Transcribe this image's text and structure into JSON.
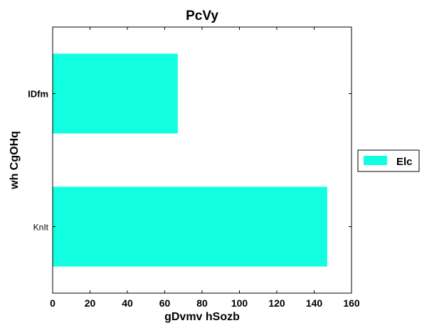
{
  "chart_data": {
    "type": "bar",
    "orientation": "horizontal",
    "title": "PcVy",
    "xlabel": "gDvmv hSozb",
    "ylabel": "wh CgOHq",
    "categories": [
      "KnIt",
      "IDfm"
    ],
    "series": [
      {
        "name": "Elc",
        "values": [
          147,
          67
        ],
        "color": "#11ffe0"
      }
    ],
    "xlim": [
      0,
      160
    ],
    "xticks": [
      0,
      20,
      40,
      60,
      80,
      100,
      120,
      140,
      160
    ],
    "grid": false,
    "legend_position": "right"
  }
}
